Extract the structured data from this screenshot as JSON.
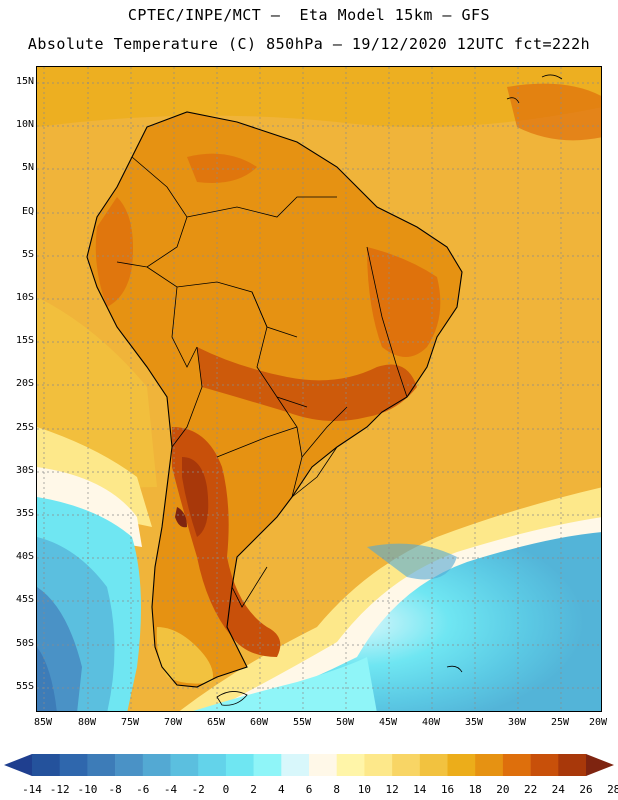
{
  "header": {
    "line1": "CPTEC/INPE/MCT –  Eta Model 15km – GFS",
    "line2": "Absolute Temperature (C) 850hPa – 19/12/2020 12UTC fct=222h"
  },
  "map": {
    "region": "South America",
    "variable": "Absolute Temperature (C) at 850hPa",
    "lat_labels": [
      "15N",
      "10N",
      "5N",
      "EQ",
      "5S",
      "10S",
      "15S",
      "20S",
      "25S",
      "30S",
      "35S",
      "40S",
      "45S",
      "50S",
      "55S"
    ],
    "lon_labels": [
      "85W",
      "80W",
      "75W",
      "70W",
      "65W",
      "60W",
      "55W",
      "50W",
      "45W",
      "40W",
      "35W",
      "30W",
      "25W",
      "20W"
    ]
  },
  "colorbar": {
    "labels": [
      "-14",
      "-12",
      "-10",
      "-8",
      "-6",
      "-4",
      "-2",
      "0",
      "2",
      "4",
      "6",
      "8",
      "10",
      "12",
      "14",
      "16",
      "18",
      "20",
      "22",
      "24",
      "26",
      "28"
    ],
    "colors": [
      "#1f3f8f",
      "#24529c",
      "#2f67ad",
      "#3d7cb8",
      "#4a92c6",
      "#53a9d3",
      "#5bbfdf",
      "#63d3ea",
      "#6fe6f2",
      "#8ff5f8",
      "#d8f7fb",
      "#fff8e8",
      "#fff5a8",
      "#fde88a",
      "#f8d565",
      "#f2c23f",
      "#ecad1a",
      "#e69212",
      "#de6f0c",
      "#c8500a",
      "#a8380a",
      "#7e2410"
    ]
  }
}
